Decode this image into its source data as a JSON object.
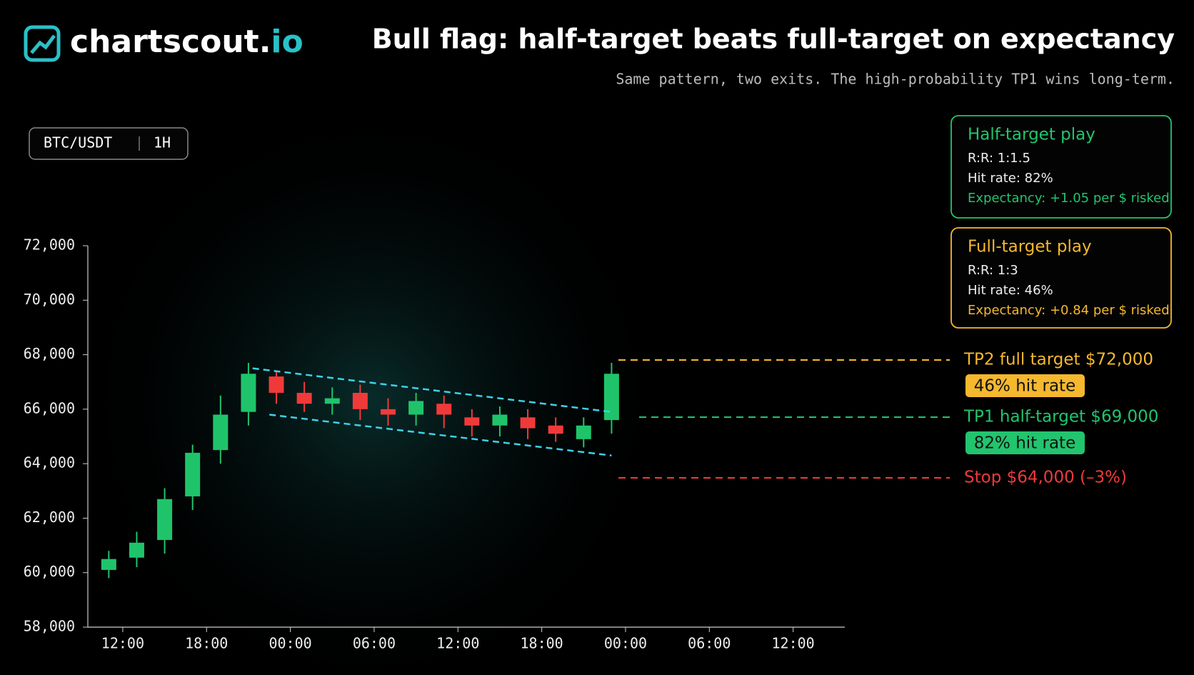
{
  "brand": {
    "name": "chartscout.",
    "tld": "io"
  },
  "header": {
    "title": "Bull flag: half-target beats full-target on expectancy",
    "subtitle": "Same pattern, two exits. The high-probability TP1 wins long-term."
  },
  "pair": {
    "symbol": "BTC/USDT",
    "timeframe": "1H"
  },
  "cards": [
    {
      "title": "Half-target play",
      "lines": [
        "R:R: 1:1.5",
        "Hit rate: 82%"
      ],
      "expectancy": "Expectancy: +1.05 per $ risked",
      "color": "#22c46e"
    },
    {
      "title": "Full-target play",
      "lines": [
        "R:R: 1:3",
        "Hit rate: 46%"
      ],
      "expectancy": "Expectancy: +0.84 per $ risked",
      "color": "#f5b82e"
    }
  ],
  "levels": [
    {
      "label": "TP2  full target $72,000",
      "badge": "46% hit rate",
      "color": "#f5b82e"
    },
    {
      "label": "TP1 half-target $69,000",
      "badge": "82% hit rate",
      "color": "#22c46e"
    },
    {
      "label": "Stop  $64,000 (–3%)",
      "color": "#f03a3a"
    }
  ],
  "chart_data": {
    "type": "candlestick",
    "up_color": "#1fc46a",
    "down_color": "#f03a3a",
    "channel_color": "#3fd0e8",
    "x": [
      -1,
      1,
      3,
      5,
      7,
      9,
      11,
      13,
      15,
      17,
      19,
      21,
      23,
      25,
      27,
      29,
      31,
      33,
      35
    ],
    "open": [
      60100,
      60550,
      61200,
      62800,
      64500,
      65900,
      67200,
      66600,
      66200,
      66600,
      66000,
      65800,
      66200,
      65700,
      65400,
      65700,
      65400,
      64900,
      65600
    ],
    "high": [
      60800,
      61500,
      63100,
      64700,
      66500,
      67700,
      67400,
      67000,
      66800,
      66900,
      66400,
      66600,
      66500,
      66000,
      66100,
      66000,
      65700,
      65700,
      67700
    ],
    "low": [
      59800,
      60200,
      60700,
      62300,
      64000,
      65400,
      66200,
      65900,
      65800,
      65600,
      65400,
      65400,
      65300,
      65000,
      65000,
      64900,
      64800,
      64600,
      65100
    ],
    "close": [
      60500,
      61100,
      62700,
      64400,
      65800,
      67300,
      66600,
      66200,
      66400,
      66000,
      65800,
      66300,
      65800,
      65400,
      65800,
      65300,
      65100,
      65400,
      67300
    ],
    "channel": [
      {
        "x": [
          9.3,
          35
        ],
        "y": [
          67500,
          65900
        ]
      },
      {
        "x": [
          10.5,
          35
        ],
        "y": [
          65800,
          64300
        ]
      }
    ],
    "xlim": [
      -2.5,
      51.7
    ],
    "xticks": [
      {
        "value": 0,
        "label": "12:00"
      },
      {
        "value": 6,
        "label": "18:00"
      },
      {
        "value": 12,
        "label": "00:00"
      },
      {
        "value": 18,
        "label": "06:00"
      },
      {
        "value": 24,
        "label": "12:00"
      },
      {
        "value": 30,
        "label": "18:00"
      },
      {
        "value": 36,
        "label": "00:00"
      },
      {
        "value": 42,
        "label": "06:00"
      },
      {
        "value": 48,
        "label": "12:00"
      }
    ],
    "ylim": [
      58000,
      72000
    ],
    "yticks": [
      {
        "value": 58000,
        "label": "58,000"
      },
      {
        "value": 60000,
        "label": "60,000"
      },
      {
        "value": 62000,
        "label": "62,000"
      },
      {
        "value": 64000,
        "label": "64,000"
      },
      {
        "value": 66000,
        "label": "66,000"
      },
      {
        "value": 68000,
        "label": "68,000"
      },
      {
        "value": 70000,
        "label": "70,000"
      },
      {
        "value": 72000,
        "label": "72,000"
      }
    ]
  }
}
